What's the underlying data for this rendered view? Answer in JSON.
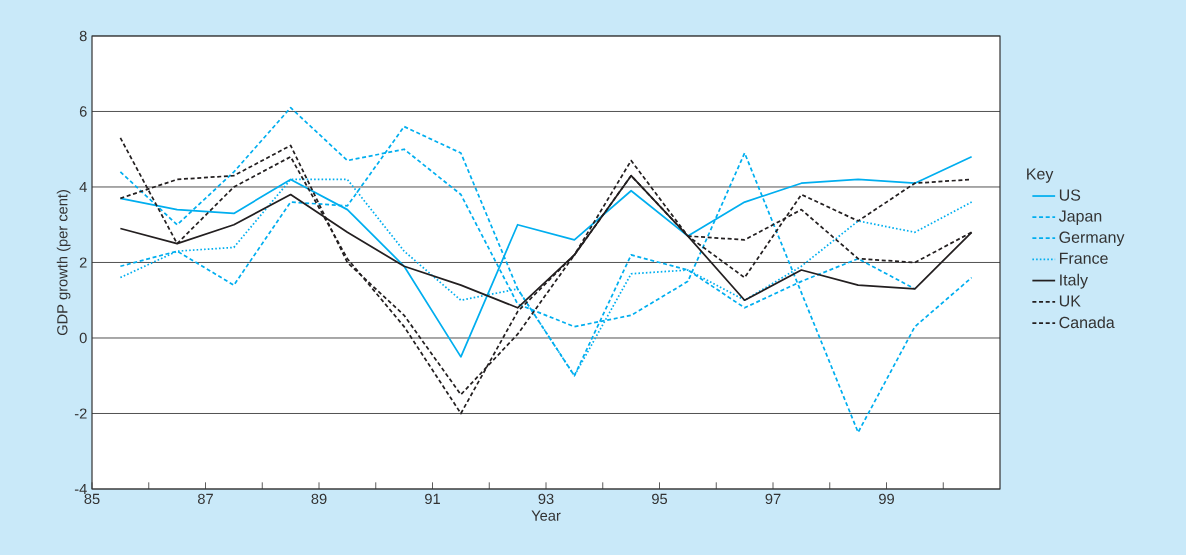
{
  "chart_data": {
    "type": "line",
    "xlabel": "Year",
    "ylabel": "GDP growth (per cent)",
    "legend_title": "Key",
    "legend": "right",
    "grid": "y",
    "x": [
      85.5,
      86.5,
      87.5,
      88.5,
      89.5,
      90.5,
      91.5,
      92.5,
      93.5,
      94.5,
      95.5,
      96.5,
      97.5,
      98.5,
      99.5,
      100.5
    ],
    "xlim": [
      85,
      101
    ],
    "xticks": [
      85,
      {
        "value": 86,
        "label": null
      },
      87,
      {
        "value": 88,
        "label": null
      },
      89,
      {
        "value": 90,
        "label": null
      },
      91,
      {
        "value": 92,
        "label": null
      },
      93,
      {
        "value": 94,
        "label": null
      },
      95,
      {
        "value": 96,
        "label": null
      },
      97,
      {
        "value": 98,
        "label": null
      },
      99,
      {
        "value": 100,
        "label": null
      }
    ],
    "ylim": [
      -4,
      8
    ],
    "yticks": [
      -4,
      -2,
      0,
      2,
      4,
      6,
      8
    ],
    "series": [
      {
        "name": "US",
        "color": "#00aeef",
        "line_style": "solid",
        "values": [
          3.7,
          3.4,
          3.3,
          4.2,
          3.4,
          1.9,
          -0.5,
          3.0,
          2.6,
          3.9,
          2.7,
          3.6,
          4.1,
          4.2,
          4.1,
          4.8
        ]
      },
      {
        "name": "Japan",
        "color": "#00aeef",
        "line_style": "dashed",
        "values": [
          4.4,
          3.0,
          4.4,
          6.1,
          4.7,
          5.0,
          3.8,
          0.9,
          0.3,
          0.6,
          1.5,
          4.9,
          1.2,
          -2.5,
          0.3,
          1.6
        ]
      },
      {
        "name": "Germany",
        "color": "#00aeef",
        "line_style": "dashed",
        "values": [
          1.9,
          2.3,
          1.4,
          3.6,
          3.5,
          5.6,
          4.9,
          1.3,
          -1.0,
          2.2,
          1.8,
          0.8,
          1.5,
          2.1,
          1.3,
          null
        ]
      },
      {
        "name": "France",
        "color": "#00aeef",
        "line_style": "dotted",
        "values": [
          1.6,
          2.3,
          2.4,
          4.2,
          4.2,
          2.3,
          1.0,
          1.3,
          -1.0,
          1.7,
          1.8,
          1.0,
          1.9,
          3.1,
          2.8,
          3.6
        ]
      },
      {
        "name": "Italy",
        "color": "#231f20",
        "line_style": "solid",
        "values": [
          2.9,
          2.5,
          3.0,
          3.8,
          2.8,
          1.9,
          1.4,
          0.8,
          2.2,
          4.3,
          2.7,
          1.0,
          1.8,
          1.4,
          1.3,
          2.8
        ]
      },
      {
        "name": "UK",
        "color": "#231f20",
        "line_style": "dashed",
        "values": [
          3.7,
          4.2,
          4.3,
          5.1,
          2.0,
          0.6,
          -1.5,
          0.1,
          2.2,
          4.3,
          2.7,
          2.6,
          3.4,
          2.1,
          2.0,
          2.8
        ]
      },
      {
        "name": "Canada",
        "color": "#231f20",
        "line_style": "dashed",
        "values": [
          5.3,
          2.5,
          4.0,
          4.8,
          2.1,
          0.3,
          -2.0,
          0.7,
          2.2,
          4.7,
          2.7,
          1.6,
          3.8,
          3.1,
          4.1,
          4.2
        ]
      }
    ]
  }
}
